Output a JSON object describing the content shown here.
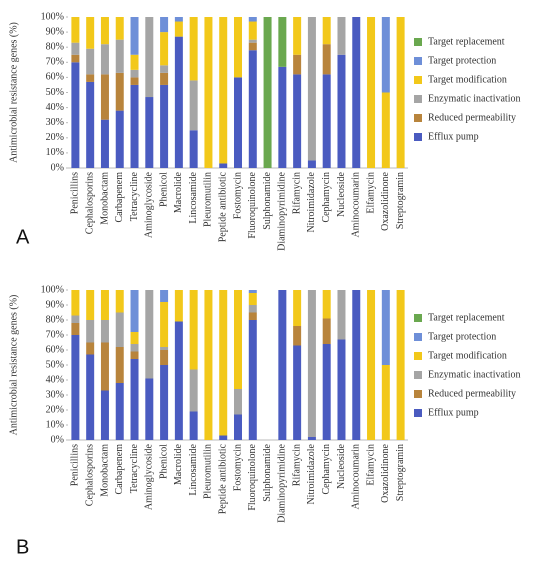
{
  "chart_data": [
    {
      "type": "bar",
      "stacked": true,
      "panel_label": "A",
      "y_label": "Antimicrobial resistance genes (%)",
      "categories": [
        "Penicillins",
        "Cephalosporins",
        "Monobactam",
        "Carbapenem",
        "Tetracycline",
        "Aminoglycoside",
        "Phenicol",
        "Macrolide",
        "Lincosamide",
        "Pleuromutilin",
        "Peptide antibiotic",
        "Fostomycin",
        "Fluoroquinolone",
        "Sulphonamide",
        "Diaminopyrimidine",
        "Rifamycin",
        "Nitroimidazole",
        "Cephamycin",
        "Nucleoside",
        "Aminocoumarin",
        "Elfamycin",
        "Oxazolidinone",
        "Streptogramin"
      ],
      "series": [
        {
          "name": "Efflux pump",
          "color": "#4a5bc0",
          "values": [
            70,
            57,
            32,
            38,
            55,
            47,
            55,
            87,
            25,
            0,
            3,
            60,
            78,
            0,
            67,
            62,
            5,
            62,
            75,
            100,
            0,
            0,
            0
          ]
        },
        {
          "name": "Reduced permeability",
          "color": "#b8843c",
          "values": [
            5,
            5,
            30,
            25,
            5,
            0,
            8,
            0,
            0,
            0,
            0,
            0,
            5,
            0,
            0,
            13,
            0,
            20,
            0,
            0,
            0,
            0,
            0
          ]
        },
        {
          "name": "Enzymatic inactivation",
          "color": "#a5a5a5",
          "values": [
            8,
            17,
            20,
            22,
            5,
            53,
            5,
            0,
            33,
            0,
            0,
            0,
            2,
            0,
            0,
            0,
            95,
            0,
            25,
            0,
            0,
            0,
            0
          ]
        },
        {
          "name": "Target modification",
          "color": "#f2c81a",
          "values": [
            17,
            21,
            18,
            15,
            10,
            0,
            22,
            10,
            42,
            100,
            97,
            40,
            12,
            0,
            0,
            25,
            0,
            18,
            0,
            0,
            100,
            50,
            100
          ]
        },
        {
          "name": "Target protection",
          "color": "#6e8fd8",
          "values": [
            0,
            0,
            0,
            0,
            25,
            0,
            10,
            3,
            0,
            0,
            0,
            0,
            3,
            0,
            0,
            0,
            0,
            0,
            0,
            0,
            0,
            50,
            0
          ]
        },
        {
          "name": "Target replacement",
          "color": "#6aa84f",
          "values": [
            0,
            0,
            0,
            0,
            0,
            0,
            0,
            0,
            0,
            0,
            0,
            0,
            0,
            100,
            33,
            0,
            0,
            0,
            0,
            0,
            0,
            0,
            0
          ]
        }
      ],
      "ylim": [
        0,
        100
      ],
      "yticks": [
        {
          "value": 0,
          "label": "0%"
        },
        {
          "value": 10,
          "label": "10%"
        },
        {
          "value": 20,
          "label": "20%"
        },
        {
          "value": 30,
          "label": "30%"
        },
        {
          "value": 40,
          "label": "40%"
        },
        {
          "value": 50,
          "label": "50%"
        },
        {
          "value": 60,
          "label": "60%"
        },
        {
          "value": 70,
          "label": "70%"
        },
        {
          "value": 80,
          "label": "80%"
        },
        {
          "value": 90,
          "label": "90%"
        },
        {
          "value": 100,
          "label": "100%"
        }
      ]
    },
    {
      "type": "bar",
      "stacked": true,
      "panel_label": "B",
      "y_label": "Antimicrobial resistance genes (%)",
      "categories": [
        "Penicillins",
        "Cephalosporins",
        "Monobactam",
        "Carbapenem",
        "Tetracycline",
        "Aminoglycoside",
        "Phenicol",
        "Macrolide",
        "Lincosamide",
        "Pleuromutilin",
        "Peptide antibiotic",
        "Fostomycin",
        "Fluoroquinolone",
        "Sulphonamide",
        "Diaminopyrimidine",
        "Rifamycin",
        "Nitroimidazole",
        "Cephamycin",
        "Nucleoside",
        "Aminocoumarin",
        "Elfamycin",
        "Oxazolidinone",
        "Streptogramin"
      ],
      "series": [
        {
          "name": "Efflux pump",
          "color": "#4a5bc0",
          "values": [
            70,
            57,
            33,
            38,
            54,
            41,
            50,
            79,
            19,
            0,
            3,
            17,
            80,
            0,
            100,
            63,
            2,
            64,
            67,
            100,
            0,
            0,
            0
          ]
        },
        {
          "name": "Reduced permeability",
          "color": "#b8843c",
          "values": [
            8,
            8,
            32,
            24,
            5,
            0,
            10,
            0,
            0,
            0,
            0,
            0,
            5,
            0,
            0,
            13,
            0,
            17,
            0,
            0,
            0,
            0,
            0
          ]
        },
        {
          "name": "Enzymatic inactivation",
          "color": "#a5a5a5",
          "values": [
            5,
            15,
            15,
            23,
            5,
            59,
            2,
            0,
            28,
            0,
            0,
            17,
            5,
            0,
            0,
            0,
            98,
            0,
            33,
            0,
            0,
            0,
            0
          ]
        },
        {
          "name": "Target modification",
          "color": "#f2c81a",
          "values": [
            17,
            20,
            20,
            15,
            8,
            0,
            30,
            21,
            53,
            100,
            97,
            66,
            8,
            0,
            0,
            24,
            0,
            19,
            0,
            0,
            100,
            50,
            100
          ]
        },
        {
          "name": "Target protection",
          "color": "#6e8fd8",
          "values": [
            0,
            0,
            0,
            0,
            28,
            0,
            8,
            0,
            0,
            0,
            0,
            0,
            2,
            0,
            0,
            0,
            0,
            0,
            0,
            0,
            0,
            50,
            0
          ]
        },
        {
          "name": "Target replacement",
          "color": "#6aa84f",
          "values": [
            0,
            0,
            0,
            0,
            0,
            0,
            0,
            0,
            0,
            0,
            0,
            0,
            0,
            0,
            0,
            0,
            0,
            0,
            0,
            0,
            0,
            0,
            0
          ]
        }
      ],
      "ylim": [
        0,
        100
      ],
      "yticks": [
        {
          "value": 0,
          "label": "0%"
        },
        {
          "value": 10,
          "label": "10%"
        },
        {
          "value": 20,
          "label": "20%"
        },
        {
          "value": 30,
          "label": "30%"
        },
        {
          "value": 40,
          "label": "40%"
        },
        {
          "value": 50,
          "label": "50%"
        },
        {
          "value": 60,
          "label": "60%"
        },
        {
          "value": 70,
          "label": "70%"
        },
        {
          "value": 80,
          "label": "80%"
        },
        {
          "value": 90,
          "label": "90%"
        },
        {
          "value": 100,
          "label": "100%"
        }
      ]
    }
  ]
}
